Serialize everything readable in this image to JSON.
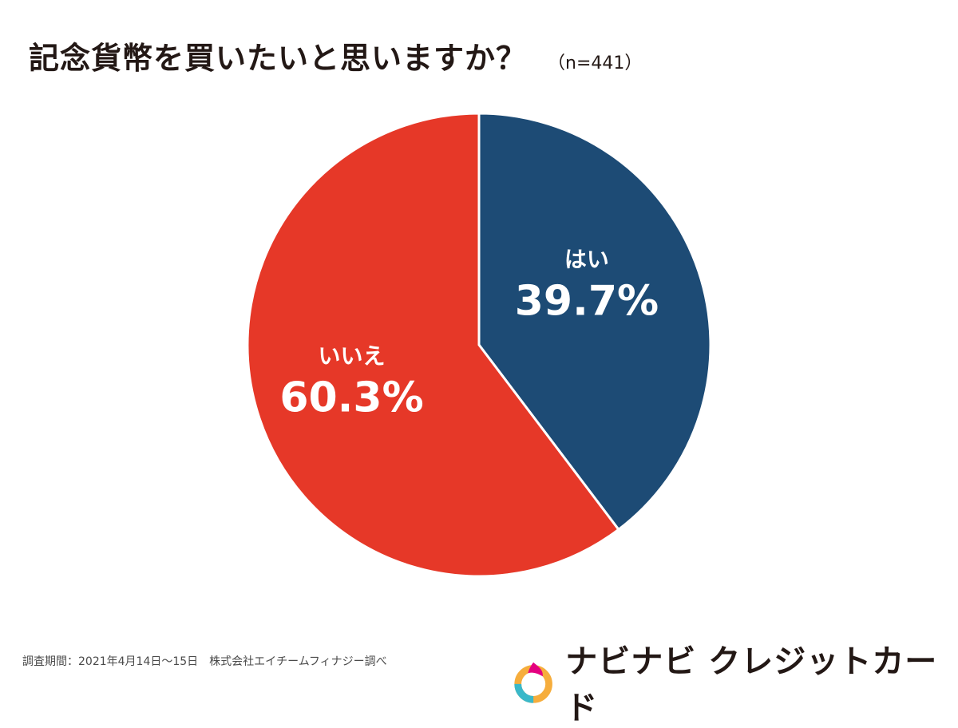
{
  "title": "記念貨幣を買いたいと思いますか？",
  "sample_size": "（n=441）",
  "chart_data": {
    "type": "pie",
    "title": "記念貨幣を買いたいと思いますか？",
    "start_angle_deg": 0,
    "direction": "clockwise",
    "slices": [
      {
        "label": "はい",
        "value": 39.7,
        "value_label": "39.7%",
        "color": "#1d4b75"
      },
      {
        "label": "いいえ",
        "value": 60.3,
        "value_label": "60.3%",
        "color": "#e63828"
      }
    ]
  },
  "footer": {
    "note": "調査期間：2021年4月14日〜15日　株式会社エイチームフィナジー調べ"
  },
  "brand": {
    "name": "ナビナビ クレジットカード",
    "logo_colors": [
      "#e4007f",
      "#f6ad3c",
      "#3ab8c9"
    ]
  }
}
